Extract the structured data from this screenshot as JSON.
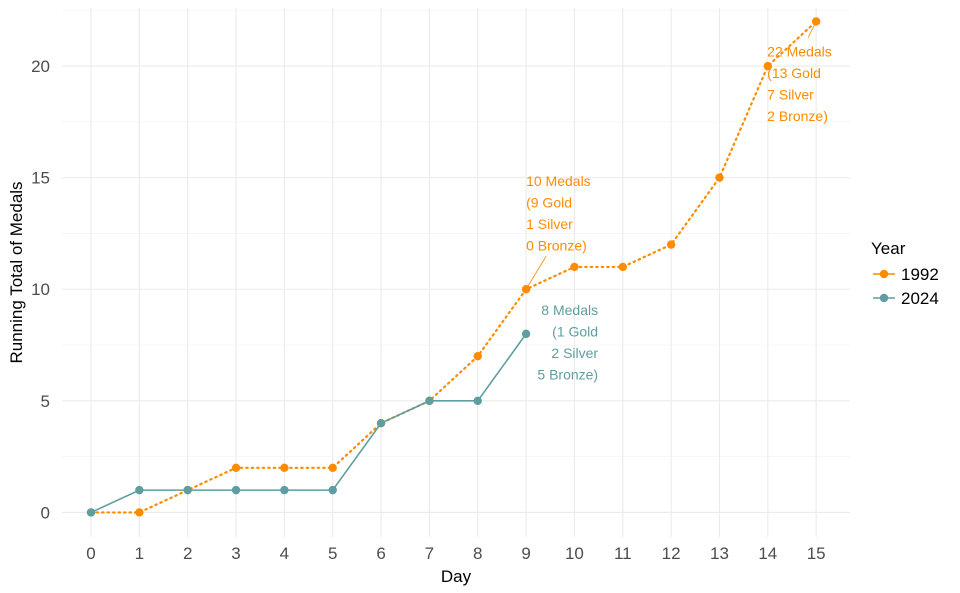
{
  "chart_data": {
    "type": "line",
    "title": "",
    "xlabel": "Day",
    "ylabel": "Running Total of Medals",
    "xlim": [
      -0.6,
      15.7
    ],
    "ylim": [
      -1.1,
      22.6
    ],
    "x_ticks": [
      0,
      1,
      2,
      3,
      4,
      5,
      6,
      7,
      8,
      9,
      10,
      11,
      12,
      13,
      14,
      15
    ],
    "y_ticks": [
      0,
      5,
      10,
      15,
      20
    ],
    "grid": true,
    "legend": {
      "title": "Year",
      "position": "right"
    },
    "series": [
      {
        "name": "1992",
        "color": "#ff8c00",
        "line_style": "dotted",
        "x": [
          0,
          1,
          2,
          3,
          4,
          5,
          6,
          7,
          8,
          9,
          10,
          11,
          12,
          13,
          14,
          15
        ],
        "y": [
          0,
          0,
          1,
          2,
          2,
          2,
          4,
          5,
          7,
          10,
          11,
          11,
          12,
          15,
          20,
          22
        ]
      },
      {
        "name": "2024",
        "color": "#5f9ea0",
        "line_style": "solid",
        "x": [
          0,
          1,
          2,
          3,
          4,
          5,
          6,
          7,
          8,
          9
        ],
        "y": [
          0,
          1,
          1,
          1,
          1,
          1,
          4,
          5,
          5,
          8
        ]
      }
    ],
    "annotations": [
      {
        "series": "1992",
        "point": [
          9,
          10
        ],
        "lines": [
          "10 Medals",
          "(9 Gold",
          "1 Silver",
          "0 Bronze)"
        ],
        "align": "left",
        "color": "#ff8c00"
      },
      {
        "series": "1992",
        "point": [
          15,
          22
        ],
        "lines": [
          "22 Medals",
          "(13 Gold",
          "7 Silver",
          "2 Bronze)"
        ],
        "align": "left",
        "color": "#ff8c00"
      },
      {
        "series": "2024",
        "point": [
          9,
          8
        ],
        "lines": [
          "8 Medals",
          "(1 Gold",
          "2 Silver",
          "5 Bronze)"
        ],
        "align": "right",
        "color": "#5f9ea0"
      }
    ]
  }
}
